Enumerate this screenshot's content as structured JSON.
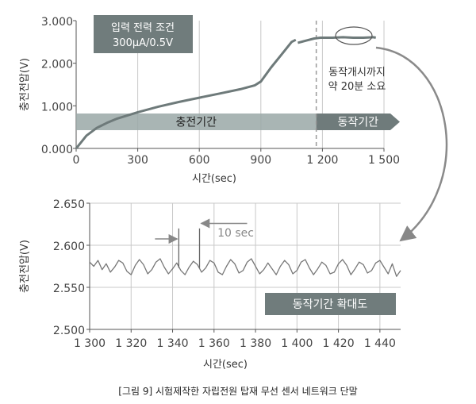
{
  "caption": "[그림 9] 시험제작한 자립전원 탑재 무선 센서 네트워크 단말",
  "chart_data": [
    {
      "type": "line",
      "xlabel": "시간(sec)",
      "ylabel": "충전전압(V)",
      "xlim": [
        0,
        1500
      ],
      "ylim": [
        0,
        3.0
      ],
      "x_ticks": [
        0,
        300,
        600,
        900,
        1200,
        1500
      ],
      "x_tick_labels": [
        "0",
        "300",
        "600",
        "900",
        "1 200",
        "1 500"
      ],
      "y_ticks": [
        0,
        1,
        2,
        3
      ],
      "y_tick_labels": [
        "0.000",
        "1.000",
        "2.000",
        "3.000"
      ],
      "condition_box": {
        "line1": "입력 전력 조건",
        "line2": "300μA/0.5V"
      },
      "charging_label": "충전기간",
      "operation_label": "동작기간",
      "note_line1": "동작개시까지",
      "note_line2": "약 20분 소요",
      "charge_end_x": 1170,
      "series": [
        {
          "x": [
            0,
            20,
            50,
            100,
            150,
            200,
            300,
            400,
            500,
            600,
            700,
            800,
            870,
            900,
            950,
            1000,
            1050,
            1070
          ],
          "y": [
            0.0,
            0.12,
            0.3,
            0.48,
            0.6,
            0.7,
            0.85,
            0.98,
            1.09,
            1.19,
            1.29,
            1.39,
            1.48,
            1.57,
            1.9,
            2.2,
            2.5,
            2.55
          ]
        },
        {
          "x": [
            1080,
            1120,
            1160,
            1190,
            1250,
            1300,
            1350,
            1400,
            1450,
            1460
          ],
          "y": [
            2.48,
            2.53,
            2.58,
            2.6,
            2.6,
            2.61,
            2.6,
            2.6,
            2.61,
            2.6
          ]
        }
      ]
    },
    {
      "type": "line",
      "xlabel": "시간(sec)",
      "ylabel": "충전전압(V)",
      "xlim": [
        1300,
        1450
      ],
      "ylim": [
        2.5,
        2.65
      ],
      "x_ticks": [
        1300,
        1320,
        1340,
        1360,
        1380,
        1400,
        1420,
        1440
      ],
      "x_tick_labels": [
        "1 300",
        "1 320",
        "1 340",
        "1 360",
        "1 380",
        "1 400",
        "1 420",
        "1 440"
      ],
      "y_ticks": [
        2.5,
        2.55,
        2.6,
        2.65
      ],
      "y_tick_labels": [
        "2.500",
        "2.550",
        "2.600",
        "2.650"
      ],
      "interval_label": "10 sec",
      "zoom_label": "동작기간 확대도",
      "spikes_x": [
        1343,
        1353
      ],
      "spike_top": 2.62,
      "series": [
        {
          "x": [
            1300,
            1302,
            1304,
            1306,
            1308,
            1310,
            1312,
            1314,
            1316,
            1318,
            1320,
            1322,
            1324,
            1326,
            1328,
            1330,
            1332,
            1334,
            1336,
            1338,
            1340,
            1342,
            1344,
            1346,
            1348,
            1350,
            1352,
            1354,
            1356,
            1358,
            1360,
            1362,
            1364,
            1366,
            1368,
            1370,
            1372,
            1374,
            1376,
            1378,
            1380,
            1382,
            1384,
            1386,
            1388,
            1390,
            1392,
            1394,
            1396,
            1398,
            1400,
            1402,
            1404,
            1406,
            1408,
            1410,
            1412,
            1414,
            1416,
            1418,
            1420,
            1422,
            1424,
            1426,
            1428,
            1430,
            1432,
            1434,
            1436,
            1438,
            1440,
            1442,
            1444,
            1446,
            1448,
            1450
          ],
          "y": [
            2.58,
            2.575,
            2.582,
            2.571,
            2.578,
            2.568,
            2.574,
            2.582,
            2.579,
            2.569,
            2.565,
            2.576,
            2.583,
            2.577,
            2.566,
            2.571,
            2.58,
            2.584,
            2.574,
            2.566,
            2.572,
            2.579,
            2.57,
            2.565,
            2.574,
            2.581,
            2.577,
            2.568,
            2.573,
            2.582,
            2.579,
            2.568,
            2.565,
            2.575,
            2.583,
            2.578,
            2.567,
            2.57,
            2.58,
            2.584,
            2.575,
            2.566,
            2.571,
            2.579,
            2.572,
            2.565,
            2.575,
            2.582,
            2.577,
            2.566,
            2.57,
            2.58,
            2.583,
            2.573,
            2.565,
            2.572,
            2.58,
            2.576,
            2.566,
            2.568,
            2.578,
            2.583,
            2.576,
            2.565,
            2.572,
            2.58,
            2.577,
            2.567,
            2.57,
            2.579,
            2.582,
            2.574,
            2.566,
            2.578,
            2.563,
            2.57
          ]
        }
      ]
    }
  ]
}
